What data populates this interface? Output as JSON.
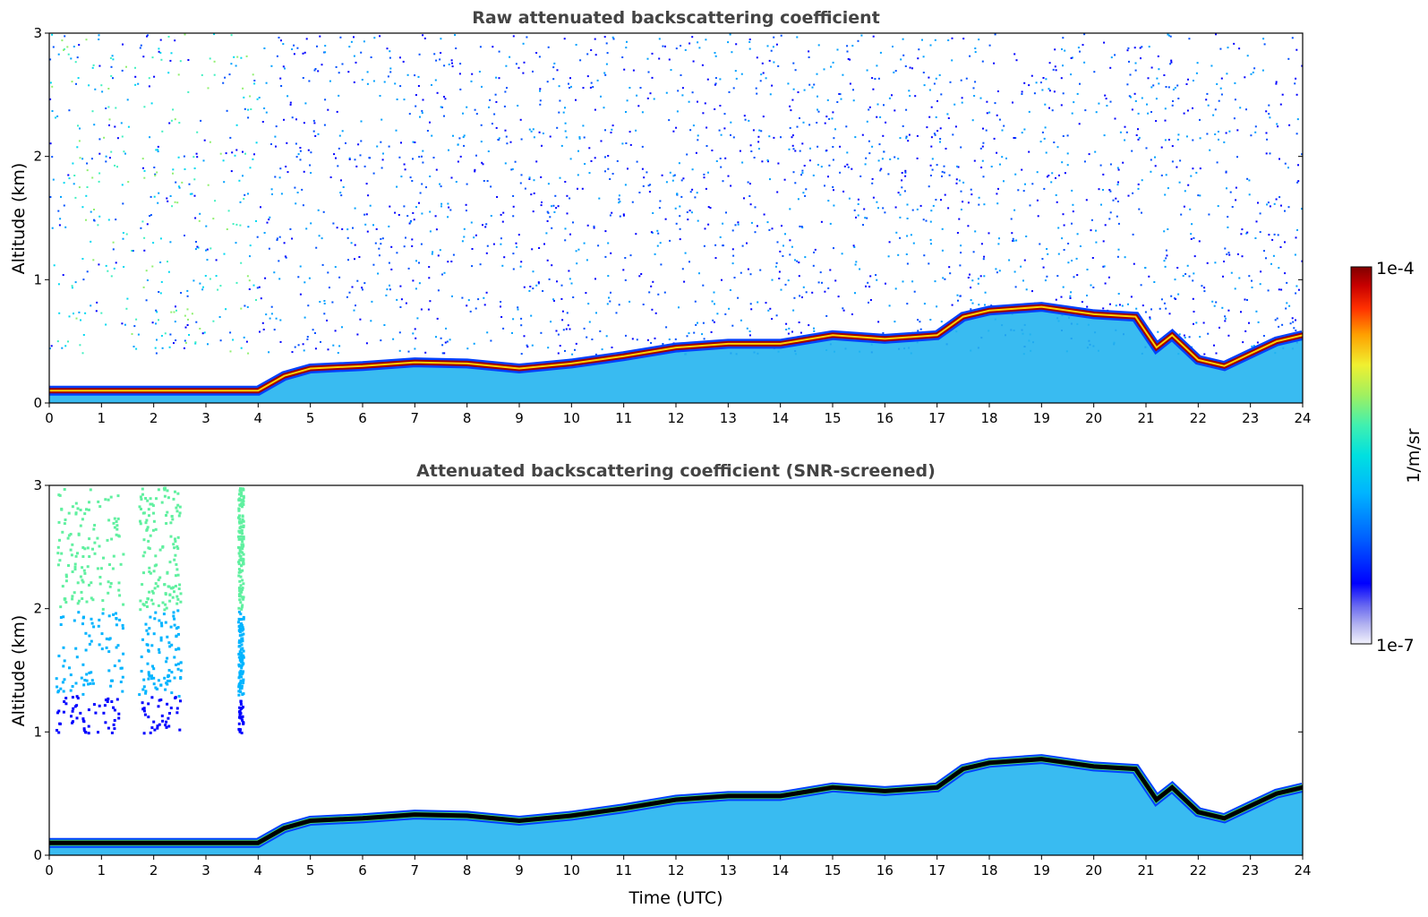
{
  "chart_data": [
    {
      "type": "heatmap",
      "title": "Raw attenuated backscattering coefficient",
      "xlabel": "",
      "ylabel": "Altitude (km)",
      "xlim": [
        0,
        24
      ],
      "ylim": [
        0,
        3
      ],
      "xticks": [
        "0",
        "1",
        "2",
        "3",
        "4",
        "5",
        "6",
        "7",
        "8",
        "9",
        "10",
        "11",
        "12",
        "13",
        "14",
        "15",
        "16",
        "17",
        "18",
        "19",
        "20",
        "21",
        "22",
        "23",
        "24"
      ],
      "yticks": [
        "0",
        "1",
        "2",
        "3"
      ],
      "noise_level": "high",
      "layer_top_km": [
        [
          0,
          0.1
        ],
        [
          1,
          0.1
        ],
        [
          2,
          0.1
        ],
        [
          3,
          0.1
        ],
        [
          4,
          0.1
        ],
        [
          4.5,
          0.22
        ],
        [
          5,
          0.28
        ],
        [
          6,
          0.3
        ],
        [
          7,
          0.33
        ],
        [
          8,
          0.32
        ],
        [
          9,
          0.28
        ],
        [
          10,
          0.32
        ],
        [
          11,
          0.38
        ],
        [
          12,
          0.45
        ],
        [
          13,
          0.48
        ],
        [
          14,
          0.48
        ],
        [
          15,
          0.55
        ],
        [
          16,
          0.52
        ],
        [
          17,
          0.55
        ],
        [
          17.5,
          0.7
        ],
        [
          18,
          0.75
        ],
        [
          19,
          0.78
        ],
        [
          20,
          0.72
        ],
        [
          20.8,
          0.7
        ],
        [
          21.2,
          0.45
        ],
        [
          21.5,
          0.55
        ],
        [
          22,
          0.35
        ],
        [
          22.5,
          0.3
        ],
        [
          23,
          0.4
        ],
        [
          23.5,
          0.5
        ],
        [
          24,
          0.55
        ]
      ]
    },
    {
      "type": "heatmap",
      "title": "Attenuated backscattering coefficient (SNR-screened)",
      "xlabel": "Time (UTC)",
      "ylabel": "Altitude (km)",
      "xlim": [
        0,
        24
      ],
      "ylim": [
        0,
        3
      ],
      "xticks": [
        "0",
        "1",
        "2",
        "3",
        "4",
        "5",
        "6",
        "7",
        "8",
        "9",
        "10",
        "11",
        "12",
        "13",
        "14",
        "15",
        "16",
        "17",
        "18",
        "19",
        "20",
        "21",
        "22",
        "23",
        "24"
      ],
      "yticks": [
        "0",
        "1",
        "2",
        "3"
      ],
      "noise_level": "screened",
      "layer_top_km": [
        [
          0,
          0.1
        ],
        [
          1,
          0.1
        ],
        [
          2,
          0.1
        ],
        [
          3,
          0.1
        ],
        [
          4,
          0.1
        ],
        [
          4.5,
          0.22
        ],
        [
          5,
          0.28
        ],
        [
          6,
          0.3
        ],
        [
          7,
          0.33
        ],
        [
          8,
          0.32
        ],
        [
          9,
          0.28
        ],
        [
          10,
          0.32
        ],
        [
          11,
          0.38
        ],
        [
          12,
          0.45
        ],
        [
          13,
          0.48
        ],
        [
          14,
          0.48
        ],
        [
          15,
          0.55
        ],
        [
          16,
          0.52
        ],
        [
          17,
          0.55
        ],
        [
          17.5,
          0.7
        ],
        [
          18,
          0.75
        ],
        [
          19,
          0.78
        ],
        [
          20,
          0.72
        ],
        [
          20.8,
          0.7
        ],
        [
          21.2,
          0.45
        ],
        [
          21.5,
          0.55
        ],
        [
          22,
          0.35
        ],
        [
          22.5,
          0.3
        ],
        [
          23,
          0.4
        ],
        [
          23.5,
          0.5
        ],
        [
          24,
          0.55
        ]
      ]
    }
  ],
  "colorbar": {
    "max_label": "1e-4",
    "min_label": "1e-7",
    "unit_label": "1/m/sr",
    "colors": [
      "#e8e8f8",
      "#b0b0f0",
      "#6a6af0",
      "#0000ff",
      "#0050ff",
      "#00a0ff",
      "#00d8f0",
      "#40f0c0",
      "#90f070",
      "#e8f040",
      "#ffb000",
      "#ff5000",
      "#e00000",
      "#800000"
    ]
  }
}
